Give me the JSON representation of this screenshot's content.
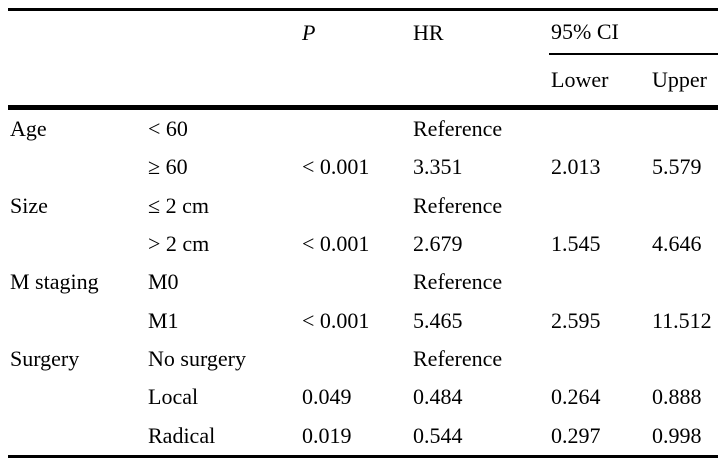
{
  "table": {
    "header": {
      "p_label": "P",
      "hr_label": "HR",
      "ci_label": "95% CI",
      "lower_label": "Lower",
      "upper_label": "Upper"
    },
    "rows": [
      {
        "group": "Age",
        "level": "< 60",
        "p": "",
        "hr": "Reference",
        "lower": "",
        "upper": ""
      },
      {
        "group": "",
        "level": "≥ 60",
        "p": "< 0.001",
        "hr": "3.351",
        "lower": "2.013",
        "upper": "5.579"
      },
      {
        "group": "Size",
        "level": "≤ 2 cm",
        "p": "",
        "hr": "Reference",
        "lower": "",
        "upper": ""
      },
      {
        "group": "",
        "level": "> 2 cm",
        "p": "< 0.001",
        "hr": "2.679",
        "lower": "1.545",
        "upper": "4.646"
      },
      {
        "group": "M staging",
        "level": "M0",
        "p": "",
        "hr": "Reference",
        "lower": "",
        "upper": ""
      },
      {
        "group": "",
        "level": "M1",
        "p": "< 0.001",
        "hr": "5.465",
        "lower": "2.595",
        "upper": "11.512"
      },
      {
        "group": "Surgery",
        "level": "No surgery",
        "p": "",
        "hr": "Reference",
        "lower": "",
        "upper": ""
      },
      {
        "group": "",
        "level": "Local",
        "p": "0.049",
        "hr": "0.484",
        "lower": "0.264",
        "upper": "0.888"
      },
      {
        "group": "",
        "level": "Radical",
        "p": "0.019",
        "hr": "0.544",
        "lower": "0.297",
        "upper": "0.998"
      }
    ],
    "colors": {
      "text": "#000000",
      "rule": "#000000",
      "background": "#ffffff"
    }
  }
}
